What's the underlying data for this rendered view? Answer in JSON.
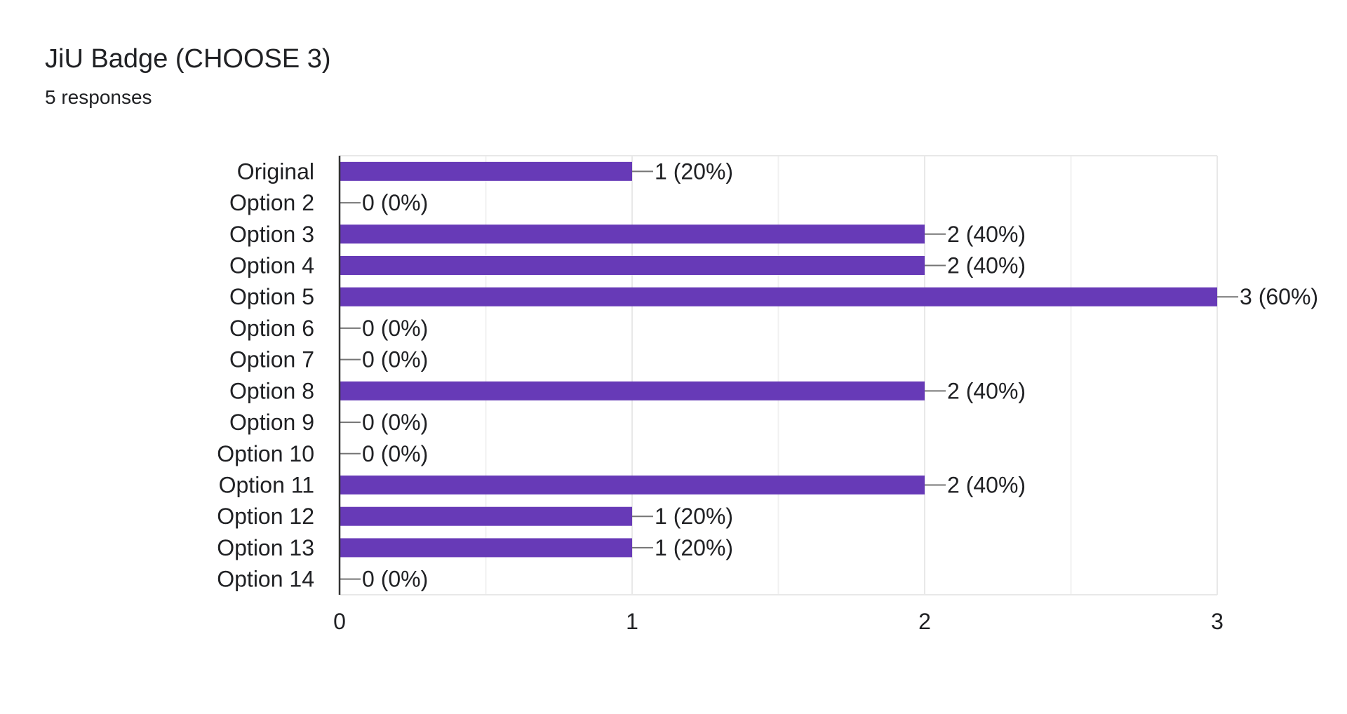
{
  "header": {
    "title": "JiU Badge (CHOOSE 3)",
    "subtitle": "5 responses"
  },
  "colors": {
    "bar": "#673ab7",
    "grid": "#e8e8e8",
    "axis": "#333333",
    "connector": "#757575",
    "text": "#202124"
  },
  "chart_data": {
    "type": "bar",
    "orientation": "horizontal",
    "title": "JiU Badge (CHOOSE 3)",
    "subtitle": "5 responses",
    "categories": [
      "Original",
      "Option 2",
      "Option 3",
      "Option 4",
      "Option 5",
      "Option 6",
      "Option 7",
      "Option 8",
      "Option 9",
      "Option 10",
      "Option 11",
      "Option 12",
      "Option 13",
      "Option 14"
    ],
    "values": [
      1,
      0,
      2,
      2,
      3,
      0,
      0,
      2,
      0,
      0,
      2,
      1,
      1,
      0
    ],
    "data_labels": [
      "1 (20%)",
      "0 (0%)",
      "2 (40%)",
      "2 (40%)",
      "3 (60%)",
      "0 (0%)",
      "0 (0%)",
      "2 (40%)",
      "0 (0%)",
      "0 (0%)",
      "2 (40%)",
      "1 (20%)",
      "1 (20%)",
      "0 (0%)"
    ],
    "xlim": [
      0,
      3
    ],
    "xticks": [
      0,
      1,
      2,
      3
    ],
    "xtick_labels": [
      "0",
      "1",
      "2",
      "3"
    ],
    "minor_gridlines": [
      0.5,
      1.5,
      2.5
    ],
    "grid": true,
    "legend": "none"
  }
}
